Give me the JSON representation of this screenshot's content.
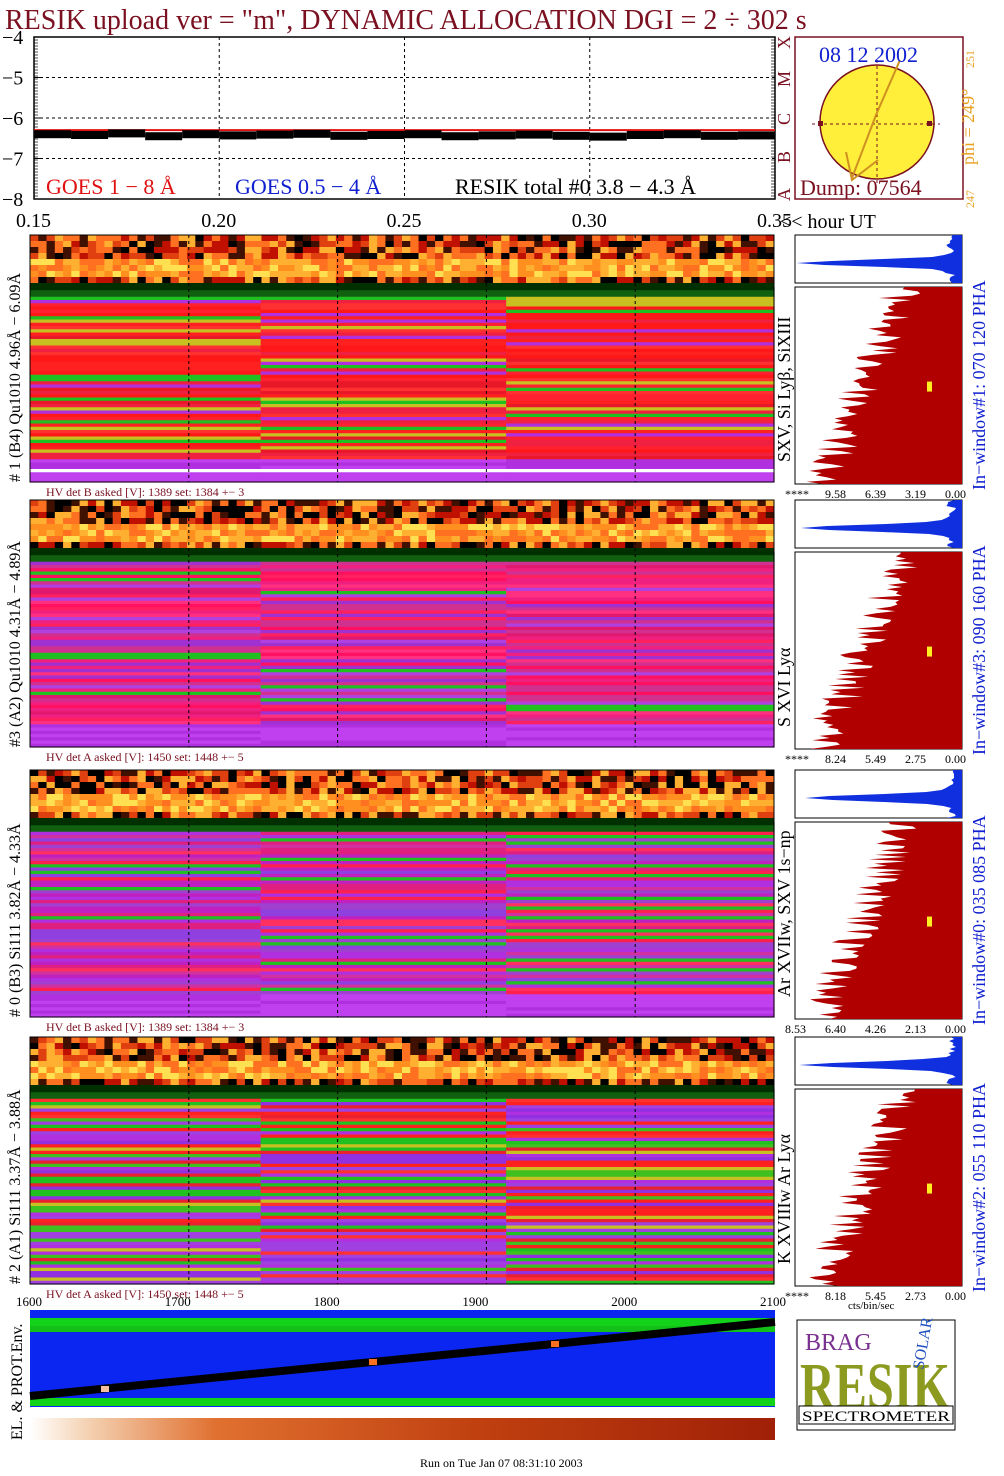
{
  "title": "RESIK upload ver = \"m\", DYNAMIC ALLOCATION  DGI =   2 ÷ 302 s",
  "colors": {
    "title": "#7a1020",
    "goes_red": "#e01010",
    "goes_blue": "#1020d0",
    "orange": "#e8a020",
    "hist_fill": "#b00000",
    "small_hist_fill": "#1030e0",
    "hv_text": "#7a1020",
    "violet": "#a040e0"
  },
  "chart_data": [
    {
      "type": "line",
      "name": "goes-lightcurve",
      "y_ticks": [
        "−4",
        "−5",
        "−6",
        "−7",
        "−8"
      ],
      "ylim": [
        -8,
        -4
      ],
      "x_ticks": [
        "0.15",
        "0.20",
        "0.25",
        "0.30",
        "0.35"
      ],
      "x_unit_label": "<< hour UT",
      "xlim": [
        0.15,
        0.35
      ],
      "legend": {
        "goes_long": "GOES 1 − 8 Å",
        "goes_short": "GOES 0.5 − 4 Å",
        "resik_total": "RESIK total #0  3.8 − 4.3 Å"
      },
      "series": [
        {
          "color": "#e01010",
          "values": [
            -6.3,
            -6.3
          ]
        },
        {
          "color": "#000000",
          "values": [
            -6.4,
            -6.42,
            -6.38,
            -6.45,
            -6.4,
            -6.43,
            -6.41,
            -6.39,
            -6.44,
            -6.42,
            -6.4,
            -6.45,
            -6.43,
            -6.41,
            -6.44,
            -6.46,
            -6.42,
            -6.4,
            -6.44,
            -6.43
          ]
        }
      ]
    },
    {
      "type": "heatmap",
      "name": "spectra-panels",
      "x_ticks": [
        "1600",
        "1700",
        "1800",
        "1900",
        "2000",
        "2100"
      ],
      "xlim": [
        1600,
        2100
      ],
      "panels": [
        {
          "label": "# 1 (B4) Qu1010 4.96Å − 6.09Å",
          "lines": "SXV, Si Lyβ, SiXIII",
          "window": "In−window#1:  070 120 PHA",
          "hv": "HV det B asked [V]:  1389 set:  1384  +−    3",
          "hist_ticks": [
            "****",
            "9.58",
            "6.39",
            "3.19",
            "0.00"
          ]
        },
        {
          "label": "#3 (A2) Qu1010  4.31Å − 4.89Å",
          "lines": "S XVI Lyα",
          "window": "In−window#3:  090 160 PHA",
          "hv": "HV det A asked [V]:  1450 set:  1448  +−    5",
          "hist_ticks": [
            "****",
            "8.24",
            "5.49",
            "2.75",
            "0.00"
          ]
        },
        {
          "label": "# 0 (B3) Si111  3.82Å − 4.33Å",
          "lines": "Ar XVIIw, SXV 1s−np",
          "window": "In−window#0:  035 085 PHA",
          "hv": "HV det B asked [V]:  1389 set:  1384  +−    3",
          "hist_ticks": [
            "8.53",
            "6.40",
            "4.26",
            "2.13",
            "0.00"
          ]
        },
        {
          "label": "# 2 (A1) Si111  3.37Å − 3.88Å",
          "lines": "K XVIIIw  Ar Lyα",
          "window": "In−window#2:  055 110 PHA",
          "hv": "HV det A asked [V]:  1450 set:  1448  +−    5",
          "hist_ticks": [
            "****",
            "8.18",
            "5.45",
            "2.73",
            "0.00"
          ]
        }
      ],
      "hist_unit": "cts/bin/sec"
    }
  ],
  "solar_disk": {
    "date": "08 12 2002",
    "phi_label": "phi = 249°",
    "phi_sup": "251",
    "phi_low": "247",
    "dump": "Dump: 07564",
    "axis_letters": [
      "X",
      "M",
      "C",
      "B",
      "A"
    ]
  },
  "env_label": "EL. & PROT.Env.",
  "footer": "Run on Tue Jan 07 08:31:10 2003",
  "logo": {
    "letters": "RESIK",
    "brag": "BRAG",
    "solar": "SOLAR",
    "spectrometer": "SPECTROMETER"
  }
}
